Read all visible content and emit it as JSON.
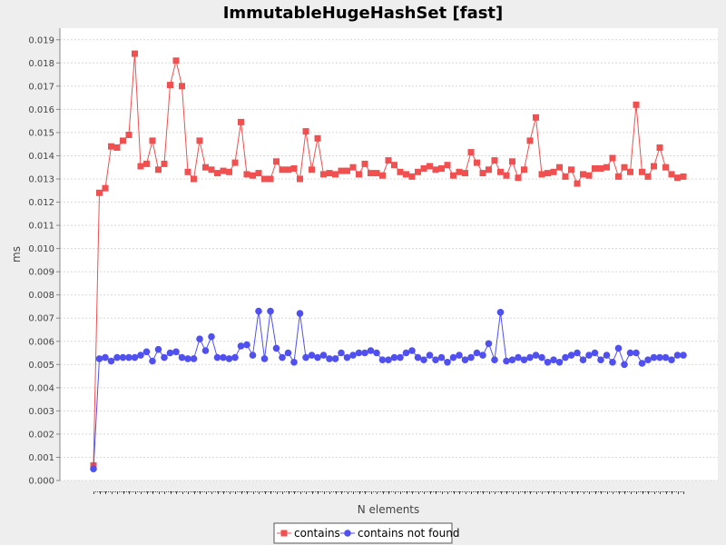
{
  "chart_data": {
    "type": "line",
    "title": "ImmutableHugeHashSet [fast]",
    "xlabel": "N elements",
    "ylabel": "ms",
    "ylim": [
      0,
      0.0195
    ],
    "yticks": [
      "0.000",
      "0.001",
      "0.002",
      "0.003",
      "0.004",
      "0.005",
      "0.006",
      "0.007",
      "0.008",
      "0.009",
      "0.010",
      "0.011",
      "0.012",
      "0.013",
      "0.014",
      "0.015",
      "0.016",
      "0.017",
      "0.018",
      "0.019"
    ],
    "grid": true,
    "legend_position": "bottom",
    "series": [
      {
        "name": "contains",
        "color": "#f05050",
        "marker": "square",
        "values": [
          0.00065,
          0.0124,
          0.0126,
          0.0144,
          0.01435,
          0.01465,
          0.0149,
          0.0184,
          0.01355,
          0.01365,
          0.01465,
          0.0134,
          0.01365,
          0.01705,
          0.0181,
          0.017,
          0.0133,
          0.013,
          0.01465,
          0.0135,
          0.0134,
          0.01325,
          0.01335,
          0.0133,
          0.0137,
          0.01545,
          0.0132,
          0.01315,
          0.01325,
          0.013,
          0.013,
          0.01375,
          0.0134,
          0.0134,
          0.01345,
          0.013,
          0.01505,
          0.0134,
          0.01475,
          0.0132,
          0.01325,
          0.0132,
          0.01335,
          0.01335,
          0.0135,
          0.0132,
          0.01365,
          0.01325,
          0.01325,
          0.01315,
          0.0138,
          0.0136,
          0.0133,
          0.0132,
          0.0131,
          0.0133,
          0.01345,
          0.01355,
          0.0134,
          0.01345,
          0.0136,
          0.01315,
          0.0133,
          0.01325,
          0.01415,
          0.0137,
          0.01325,
          0.0134,
          0.0138,
          0.0133,
          0.01315,
          0.01375,
          0.01305,
          0.0134,
          0.01465,
          0.01565,
          0.0132,
          0.01325,
          0.0133,
          0.0135,
          0.0131,
          0.0134,
          0.0128,
          0.0132,
          0.01315,
          0.01345,
          0.01345,
          0.0135,
          0.0139,
          0.0131,
          0.0135,
          0.0133,
          0.0162,
          0.0133,
          0.0131,
          0.01355,
          0.01435,
          0.0135,
          0.0132,
          0.01305,
          0.0131
        ]
      },
      {
        "name": "contains not found",
        "color": "#5050f0",
        "marker": "circle",
        "values": [
          0.0005,
          0.00525,
          0.0053,
          0.00515,
          0.0053,
          0.0053,
          0.0053,
          0.0053,
          0.0054,
          0.00555,
          0.00515,
          0.00565,
          0.0053,
          0.0055,
          0.00555,
          0.0053,
          0.00525,
          0.00525,
          0.0061,
          0.0056,
          0.0062,
          0.0053,
          0.0053,
          0.00525,
          0.0053,
          0.0058,
          0.00585,
          0.0054,
          0.0073,
          0.00525,
          0.0073,
          0.0057,
          0.0053,
          0.0055,
          0.0051,
          0.0072,
          0.0053,
          0.0054,
          0.0053,
          0.0054,
          0.00525,
          0.00525,
          0.0055,
          0.0053,
          0.0054,
          0.0055,
          0.0055,
          0.0056,
          0.0055,
          0.0052,
          0.0052,
          0.0053,
          0.0053,
          0.0055,
          0.0056,
          0.0053,
          0.0052,
          0.0054,
          0.0052,
          0.0053,
          0.0051,
          0.0053,
          0.0054,
          0.0052,
          0.0053,
          0.0055,
          0.0054,
          0.0059,
          0.0052,
          0.00725,
          0.00515,
          0.0052,
          0.0053,
          0.0052,
          0.0053,
          0.0054,
          0.0053,
          0.0051,
          0.0052,
          0.0051,
          0.0053,
          0.0054,
          0.0055,
          0.0052,
          0.0054,
          0.0055,
          0.0052,
          0.0054,
          0.0051,
          0.0057,
          0.005,
          0.0055,
          0.0055,
          0.00505,
          0.0052,
          0.0053,
          0.0053,
          0.0053,
          0.0052,
          0.0054,
          0.0054
        ]
      }
    ]
  }
}
